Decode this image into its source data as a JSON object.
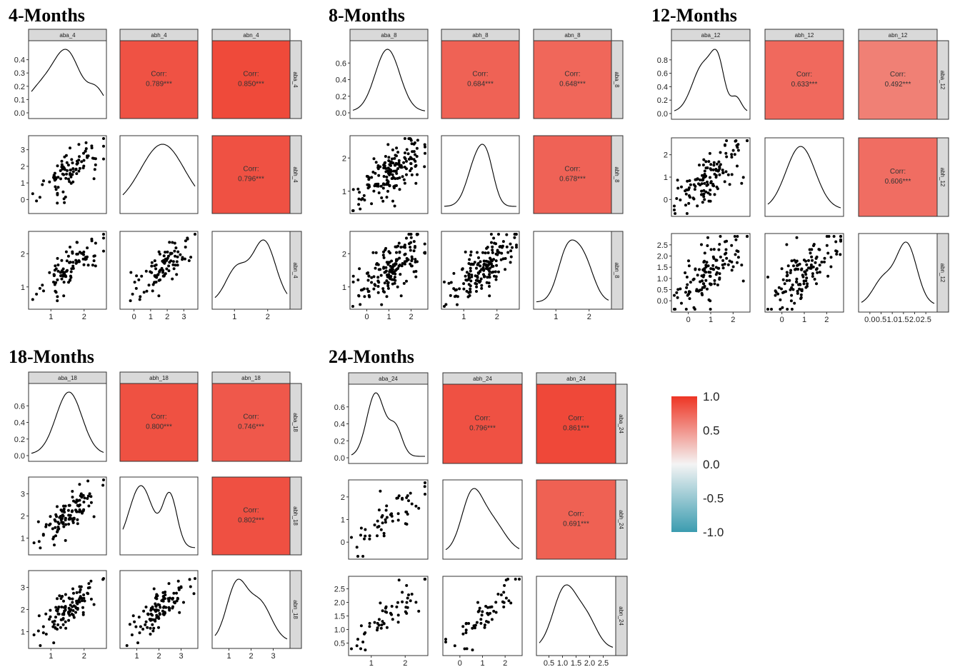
{
  "chart_data": [
    {
      "type": "scatter",
      "title": "4-Months",
      "variables": [
        "aba_4",
        "abh_4",
        "abn_4"
      ],
      "correlations": [
        [
          "0.789***",
          "0.850***"
        ],
        [
          "0.796***"
        ]
      ],
      "corr_values": [
        [
          0.789,
          0.85
        ],
        [
          0.796
        ]
      ],
      "corr_label": "Corr:",
      "ranges": [
        [
          0,
          3
        ],
        [
          0,
          3
        ],
        [
          0,
          3
        ]
      ],
      "ticks": [
        [
          "1",
          "2"
        ],
        [
          "0",
          "1",
          "2",
          "3"
        ],
        [
          "1",
          "2"
        ]
      ],
      "diag_ticks": [
        [
          "0.0",
          "0.1",
          "0.2",
          "0.3",
          "0.4"
        ],
        [
          "0",
          "1",
          "2",
          "3"
        ],
        [
          "1",
          "2"
        ]
      ],
      "density_ylim": [
        0,
        0.48
      ]
    },
    {
      "type": "scatter",
      "title": "8-Months",
      "variables": [
        "aba_8",
        "abh_8",
        "abn_8"
      ],
      "correlations": [
        [
          "0.684***",
          "0.648***"
        ],
        [
          "0.678***"
        ]
      ],
      "corr_values": [
        [
          0.684,
          0.648
        ],
        [
          0.678
        ]
      ],
      "corr_label": "Corr:",
      "ranges": [
        [
          0,
          3
        ],
        [
          0,
          3
        ],
        [
          0,
          3
        ]
      ],
      "ticks": [
        [
          "0",
          "1",
          "2"
        ],
        [
          "1",
          "2"
        ],
        [
          "1",
          "2"
        ]
      ],
      "diag_ticks": [
        [
          "0.0",
          "0.2",
          "0.4",
          "0.6"
        ],
        [
          "1",
          "2"
        ],
        [
          "1",
          "2"
        ]
      ],
      "density_ylim": [
        0,
        0.66
      ]
    },
    {
      "type": "scatter",
      "title": "12-Months",
      "variables": [
        "aba_12",
        "abh_12",
        "abn_12"
      ],
      "correlations": [
        [
          "0.633***",
          "0.492***"
        ],
        [
          "0.606***"
        ]
      ],
      "corr_values": [
        [
          0.633,
          0.492
        ],
        [
          0.606
        ]
      ],
      "corr_label": "Corr:",
      "ranges": [
        [
          0,
          2.7
        ],
        [
          0,
          2.7
        ],
        [
          0,
          2.5
        ]
      ],
      "ticks": [
        [
          "0",
          "1",
          "2"
        ],
        [
          "0",
          "1",
          "2"
        ],
        [
          "0.0",
          "0.5",
          "1.0",
          "1.5",
          "2.0",
          "2.5"
        ]
      ],
      "diag_ticks": [
        [
          "0.0",
          "0.2",
          "0.4",
          "0.6",
          "0.8"
        ],
        [
          "0",
          "1",
          "2"
        ],
        [
          "0.0",
          "0.5",
          "1.0",
          "1.5",
          "2.0",
          "2.5"
        ]
      ],
      "density_ylim": [
        0,
        0.86
      ]
    },
    {
      "type": "scatter",
      "title": "18-Months",
      "variables": [
        "aba_18",
        "abh_18",
        "abn_18"
      ],
      "correlations": [
        [
          "0.800***",
          "0.746***"
        ],
        [
          "0.802***"
        ]
      ],
      "corr_values": [
        [
          0.8,
          0.746
        ],
        [
          0.802
        ]
      ],
      "corr_label": "Corr:",
      "ranges": [
        [
          0,
          3
        ],
        [
          0,
          3
        ],
        [
          0,
          3
        ]
      ],
      "ticks": [
        [
          "1",
          "2"
        ],
        [
          "1",
          "2",
          "3"
        ],
        [
          "1",
          "2",
          "3"
        ]
      ],
      "diag_ticks": [
        [
          "0.0",
          "0.2",
          "0.4",
          "0.6"
        ],
        [
          "1",
          "2",
          "3"
        ],
        [
          "1",
          "2",
          "3"
        ]
      ],
      "density_ylim": [
        0,
        0.7
      ]
    },
    {
      "type": "scatter",
      "title": "24-Months",
      "variables": [
        "aba_24",
        "abh_24",
        "abn_24"
      ],
      "correlations": [
        [
          "0.796***",
          "0.861***"
        ],
        [
          "0.691***"
        ]
      ],
      "corr_values": [
        [
          0.796,
          0.861
        ],
        [
          0.691
        ]
      ],
      "corr_label": "Corr:",
      "ranges": [
        [
          0,
          3
        ],
        [
          0,
          3
        ],
        [
          0,
          2.7
        ]
      ],
      "ticks": [
        [
          "1",
          "2"
        ],
        [
          "0",
          "1",
          "2"
        ],
        [
          "0.5",
          "1.0",
          "1.5",
          "2.0",
          "2.5"
        ]
      ],
      "diag_ticks": [
        [
          "0.0",
          "0.2",
          "0.4",
          "0.6"
        ],
        [
          "0",
          "1",
          "2"
        ],
        [
          "0.5",
          "1.0",
          "1.5",
          "2.0",
          "2.5"
        ]
      ],
      "density_ylim": [
        0,
        0.78
      ]
    }
  ],
  "legend": {
    "ticks": [
      "1.0",
      "0.5",
      "0.0",
      "-0.5",
      "-1.0"
    ],
    "tick_values": [
      1.0,
      0.5,
      0.0,
      -0.5,
      -1.0
    ],
    "colors": {
      "high": "#ee3524",
      "mid": "#f4f4f4",
      "low": "#3b9cb0"
    }
  }
}
